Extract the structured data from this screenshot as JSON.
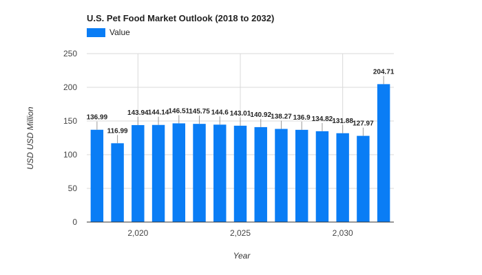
{
  "chart_data": {
    "type": "bar",
    "title": "U.S. Pet Food Market Outlook (2018 to 2032)",
    "xlabel": "Year",
    "ylabel": "USD USD Million",
    "x_ticks": [
      "2,020",
      "2,025",
      "2,030"
    ],
    "y_ticks": [
      "0",
      "50",
      "100",
      "150",
      "200",
      "250"
    ],
    "ylim": [
      0,
      250
    ],
    "grid": true,
    "legend_position": "top-left",
    "categories": [
      2018,
      2019,
      2020,
      2021,
      2022,
      2023,
      2024,
      2025,
      2026,
      2027,
      2028,
      2029,
      2030,
      2031,
      2032
    ],
    "series": [
      {
        "name": "Value",
        "color": "#0a7df5",
        "values": [
          136.99,
          116.99,
          143.94,
          144.14,
          146.51,
          145.75,
          144.6,
          143.01,
          140.92,
          138.27,
          136.9,
          134.82,
          131.88,
          127.97,
          204.71
        ],
        "labels": [
          "136.99",
          "116.99",
          "143.94",
          "144.14",
          "146.51",
          "145.75",
          "144.6",
          "143.01",
          "140.92",
          "138.27",
          "136.9",
          "134.82",
          "131.88",
          "127.97",
          "204.71"
        ]
      }
    ]
  }
}
